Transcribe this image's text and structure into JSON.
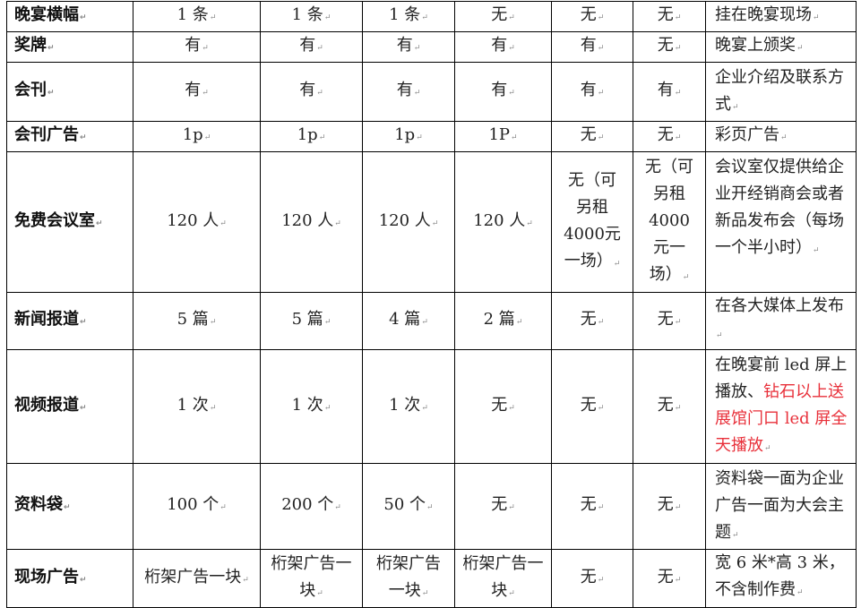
{
  "rows": [
    {
      "label": "晚宴横幅",
      "cells": [
        "1 条",
        "1 条",
        "1 条",
        "无",
        "无",
        "无"
      ],
      "note": "挂在晚宴现场"
    },
    {
      "label": "奖牌",
      "cells": [
        "有",
        "有",
        "有",
        "有",
        "有",
        "无"
      ],
      "note": "晚宴上颁奖"
    },
    {
      "label": "会刊",
      "cells": [
        "有",
        "有",
        "有",
        "有",
        "有",
        "有"
      ],
      "note": "企业介绍及联系方式"
    },
    {
      "label": "会刊广告",
      "cells": [
        "1p",
        "1p",
        "1p",
        "1P",
        "无",
        "无"
      ],
      "note": "彩页广告"
    },
    {
      "label": "免费会议室",
      "cells": [
        "120 人",
        "120 人",
        "120 人",
        "120 人",
        "无（可另租4000元一场）",
        "无（可另租4000元一场）"
      ],
      "note": "会议室仅提供给企业开经销商会或者新品发布会（每场一个半小时）"
    },
    {
      "label": "新闻报道",
      "cells": [
        "5 篇",
        "5 篇",
        "4 篇",
        "2 篇",
        "无",
        "无"
      ],
      "note": "在各大媒体上发布"
    },
    {
      "label": "视频报道",
      "cells": [
        "1 次",
        "1 次",
        "1 次",
        "无",
        "无",
        "无"
      ],
      "note": "在晚宴前 led 屏上播放、",
      "note_red": "钻石以上送展馆门口 led 屏全天播放"
    },
    {
      "label": "资料袋",
      "cells": [
        "100 个",
        "200 个",
        "50 个",
        "无",
        "无",
        "无"
      ],
      "note": "资料袋一面为企业广告一面为大会主题"
    },
    {
      "label": "现场广告",
      "cells": [
        "桁架广告一块",
        "桁架广告一块",
        "桁架广告一块",
        "桁架广告一块",
        "无",
        "无"
      ],
      "note": "宽 6 米*高 3 米，不含制作费"
    }
  ],
  "colors": {
    "text": "#222222",
    "highlight": "#e8303a",
    "border": "#000000"
  }
}
